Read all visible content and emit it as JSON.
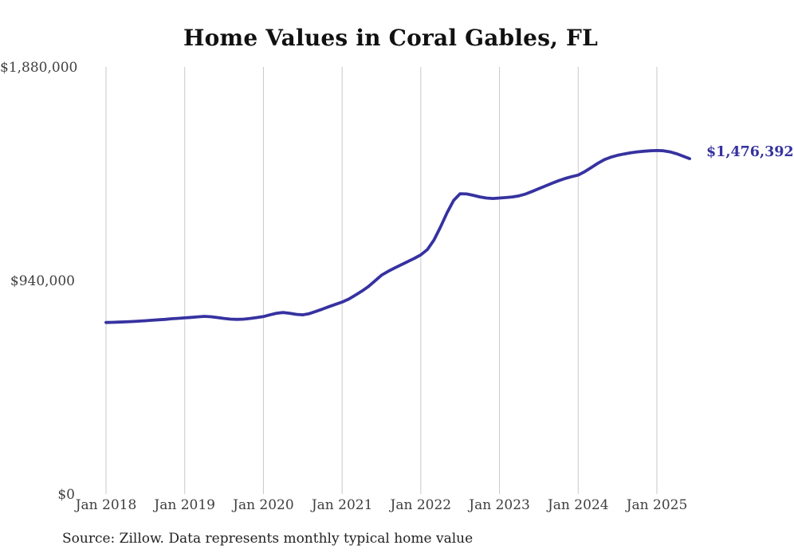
{
  "page": {
    "background_color": "#ffffff"
  },
  "chart": {
    "title": "Home Values in Coral Gables, FL",
    "source_note": "Source: Zillow. Data represents monthly typical home value",
    "end_label": "$1,476,392"
  },
  "chart_data": {
    "type": "line",
    "title": "Home Values in Coral Gables, FL",
    "xlabel": "",
    "ylabel": "",
    "ylim": [
      0,
      1880000
    ],
    "grid": "vertical-only",
    "grid_color": "#c9c9c9",
    "line_color": "#3632a0",
    "label_color": "#3f3f3f",
    "end_label": "$1,476,392",
    "final_value": 1476392,
    "x_tick_labels": [
      "Jan 2018",
      "Jan 2019",
      "Jan 2020",
      "Jan 2021",
      "Jan 2022",
      "Jan 2023",
      "Jan 2024",
      "Jan 2025"
    ],
    "y_ticks": [
      {
        "label": "$0",
        "value": 0
      },
      {
        "label": "$940,000",
        "value": 940000
      },
      {
        "label": "$1,880,000",
        "value": 1880000
      }
    ],
    "months": [
      "2018-01",
      "2018-02",
      "2018-03",
      "2018-04",
      "2018-05",
      "2018-06",
      "2018-07",
      "2018-08",
      "2018-09",
      "2018-10",
      "2018-11",
      "2018-12",
      "2019-01",
      "2019-02",
      "2019-03",
      "2019-04",
      "2019-05",
      "2019-06",
      "2019-07",
      "2019-08",
      "2019-09",
      "2019-10",
      "2019-11",
      "2019-12",
      "2020-01",
      "2020-02",
      "2020-03",
      "2020-04",
      "2020-05",
      "2020-06",
      "2020-07",
      "2020-08",
      "2020-09",
      "2020-10",
      "2020-11",
      "2020-12",
      "2021-01",
      "2021-02",
      "2021-03",
      "2021-04",
      "2021-05",
      "2021-06",
      "2021-07",
      "2021-08",
      "2021-09",
      "2021-10",
      "2021-11",
      "2021-12",
      "2022-01",
      "2022-02",
      "2022-03",
      "2022-04",
      "2022-05",
      "2022-06",
      "2022-07",
      "2022-08",
      "2022-09",
      "2022-10",
      "2022-11",
      "2022-12",
      "2023-01",
      "2023-02",
      "2023-03",
      "2023-04",
      "2023-05",
      "2023-06",
      "2023-07",
      "2023-08",
      "2023-09",
      "2023-10",
      "2023-11",
      "2023-12",
      "2024-01",
      "2024-02",
      "2024-03",
      "2024-04",
      "2024-05",
      "2024-06",
      "2024-07",
      "2024-08",
      "2024-09",
      "2024-10",
      "2024-11",
      "2024-12",
      "2025-01",
      "2025-02",
      "2025-03",
      "2025-04",
      "2025-05",
      "2025-06"
    ],
    "values": [
      755000,
      756000,
      757000,
      758000,
      759500,
      761000,
      763000,
      765000,
      767000,
      769000,
      771500,
      773500,
      775500,
      777500,
      780000,
      782000,
      780500,
      777000,
      773000,
      770000,
      769000,
      770000,
      773000,
      777000,
      781000,
      789000,
      796000,
      799000,
      796000,
      791000,
      789000,
      794000,
      804000,
      814000,
      825000,
      835000,
      845000,
      858000,
      875000,
      893000,
      913000,
      938000,
      963000,
      980000,
      995000,
      1009000,
      1023000,
      1037000,
      1053000,
      1076000,
      1118000,
      1175000,
      1238000,
      1292000,
      1322000,
      1321000,
      1315000,
      1308000,
      1303000,
      1301000,
      1303000,
      1305000,
      1308000,
      1313000,
      1321000,
      1332000,
      1344000,
      1356000,
      1368000,
      1379000,
      1389000,
      1397000,
      1404000,
      1419000,
      1437000,
      1456000,
      1472000,
      1483000,
      1491000,
      1497000,
      1502000,
      1506000,
      1509000,
      1511000,
      1512000,
      1511000,
      1506000,
      1498000,
      1487000,
      1476392
    ]
  }
}
